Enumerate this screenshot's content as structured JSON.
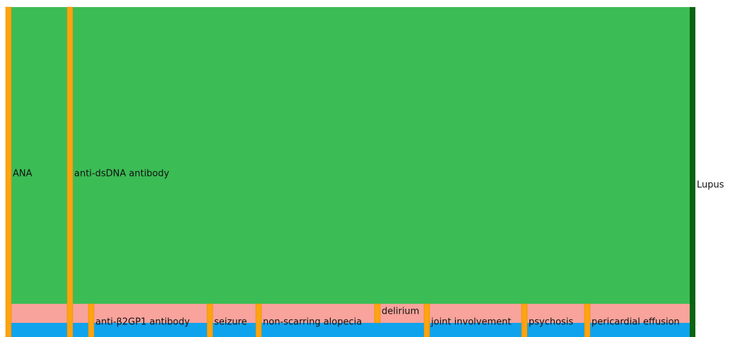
{
  "nodes": [
    {
      "label": "ANA"
    },
    {
      "label": "anti-dsDNA antibody"
    },
    {
      "label": "anti-β2GP1 antibody"
    },
    {
      "label": "seizure"
    },
    {
      "label": "non-scarring alopecia"
    },
    {
      "label": "delirium"
    },
    {
      "label": "joint involvement"
    },
    {
      "label": "psychosis"
    },
    {
      "label": "pericardial effusion"
    },
    {
      "label": "Lupus"
    }
  ]
}
